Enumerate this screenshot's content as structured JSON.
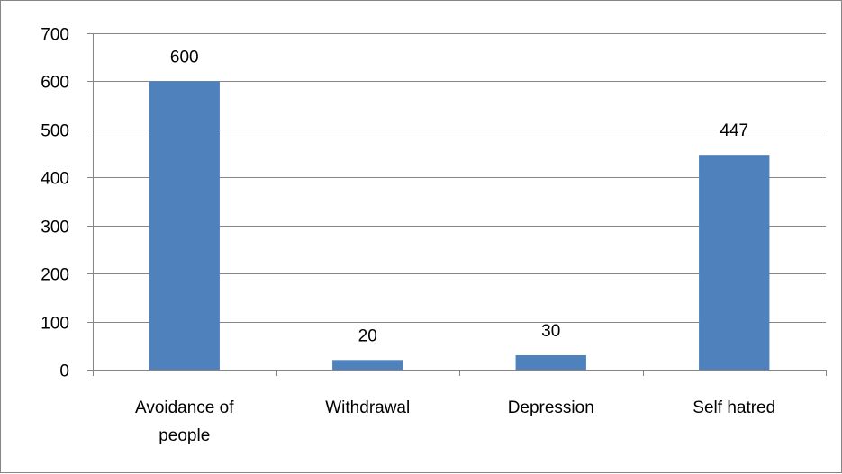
{
  "chart_data": {
    "type": "bar",
    "title": "",
    "xlabel": "",
    "ylabel": "",
    "categories": [
      [
        "Avoidance of",
        "people"
      ],
      [
        "Withdrawal"
      ],
      [
        "Depression"
      ],
      [
        "Self hatred"
      ]
    ],
    "values": [
      600,
      20,
      30,
      447
    ],
    "ylim": [
      0,
      700
    ],
    "yticks": [
      0,
      100,
      200,
      300,
      400,
      500,
      600,
      700
    ],
    "grid": true,
    "legend": "none",
    "data_labels": true,
    "colors": {
      "bar": "#4F81BD",
      "gridline": "#868686",
      "axis": "#868686",
      "border": "#868686",
      "text": "#000000"
    }
  }
}
